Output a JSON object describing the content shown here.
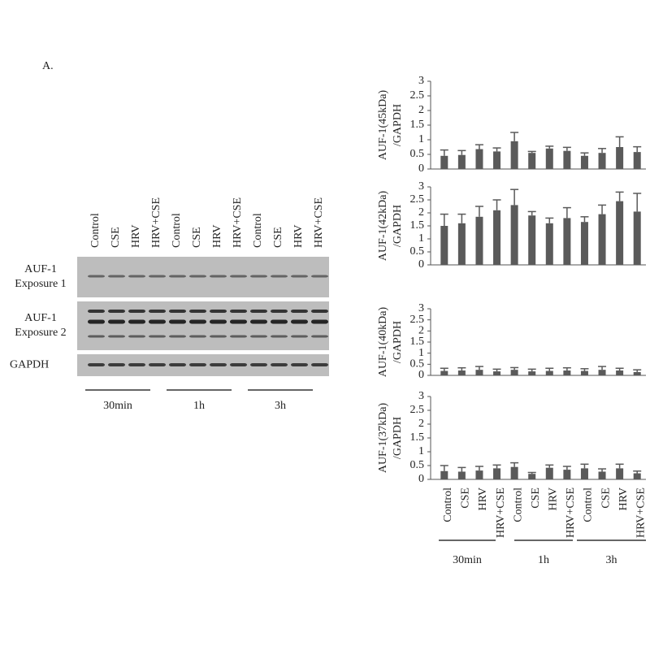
{
  "panel_label": "A.",
  "blot": {
    "lanes": [
      "Control",
      "CSE",
      "HRV",
      "HRV+CSE",
      "Control",
      "CSE",
      "HRV",
      "HRV+CSE",
      "Control",
      "CSE",
      "HRV",
      "HRV+CSE"
    ],
    "rows": [
      [
        "AUF-1",
        "Exposure 1"
      ],
      [
        "AUF-1",
        "Exposure 2"
      ],
      [
        "GAPDH"
      ]
    ],
    "groups": [
      "30min",
      "1h",
      "3h"
    ]
  },
  "chart_data": [
    {
      "type": "bar",
      "y_label": [
        "AUF-1(45kDa)",
        "/GAPDH"
      ],
      "color": "#5a5a5a",
      "values": [
        0.45,
        0.48,
        0.68,
        0.6,
        0.95,
        0.55,
        0.7,
        0.62,
        0.45,
        0.55,
        0.75,
        0.58
      ],
      "errors": [
        0.2,
        0.15,
        0.15,
        0.12,
        0.3,
        0.05,
        0.08,
        0.12,
        0.1,
        0.15,
        0.35,
        0.18
      ],
      "ylim": [
        0,
        3
      ],
      "yticks": [
        0,
        0.5,
        1,
        1.5,
        2,
        2.5,
        3
      ]
    },
    {
      "type": "bar",
      "y_label": [
        "AUF-1(42kDa)",
        "/GAPDH"
      ],
      "color": "#5a5a5a",
      "values": [
        1.5,
        1.6,
        1.85,
        2.1,
        2.3,
        1.9,
        1.6,
        1.8,
        1.65,
        1.95,
        2.45,
        2.05
      ],
      "errors": [
        0.45,
        0.35,
        0.4,
        0.4,
        0.6,
        0.15,
        0.2,
        0.4,
        0.2,
        0.35,
        0.35,
        0.7
      ],
      "ylim": [
        0,
        3
      ],
      "yticks": [
        0,
        0.5,
        1,
        1.5,
        2,
        2.5,
        3
      ]
    },
    {
      "type": "bar",
      "y_label": [
        "AUF-1(40kDa)",
        "/GAPDH"
      ],
      "color": "#5a5a5a",
      "values": [
        0.2,
        0.22,
        0.25,
        0.18,
        0.25,
        0.18,
        0.2,
        0.22,
        0.2,
        0.25,
        0.22,
        0.15
      ],
      "errors": [
        0.12,
        0.12,
        0.15,
        0.1,
        0.1,
        0.1,
        0.12,
        0.12,
        0.1,
        0.15,
        0.1,
        0.1
      ],
      "ylim": [
        0,
        3
      ],
      "yticks": [
        0,
        0.5,
        1,
        1.5,
        2,
        2.5,
        3
      ]
    },
    {
      "type": "bar",
      "y_label": [
        "AUF-1(37kDa)",
        "/GAPDH"
      ],
      "color": "#5a5a5a",
      "categories": [
        "Control",
        "CSE",
        "HRV",
        "HRV+CSE",
        "Control",
        "CSE",
        "HRV",
        "HRV+CSE",
        "Control",
        "CSE",
        "HRV",
        "HRV+CSE"
      ],
      "groups": [
        "30min",
        "1h",
        "3h"
      ],
      "values": [
        0.3,
        0.28,
        0.32,
        0.4,
        0.45,
        0.2,
        0.42,
        0.35,
        0.4,
        0.28,
        0.4,
        0.22
      ],
      "errors": [
        0.2,
        0.15,
        0.15,
        0.12,
        0.15,
        0.05,
        0.1,
        0.12,
        0.15,
        0.1,
        0.15,
        0.08
      ],
      "ylim": [
        0,
        3
      ],
      "yticks": [
        0,
        0.5,
        1,
        1.5,
        2,
        2.5,
        3
      ]
    }
  ]
}
